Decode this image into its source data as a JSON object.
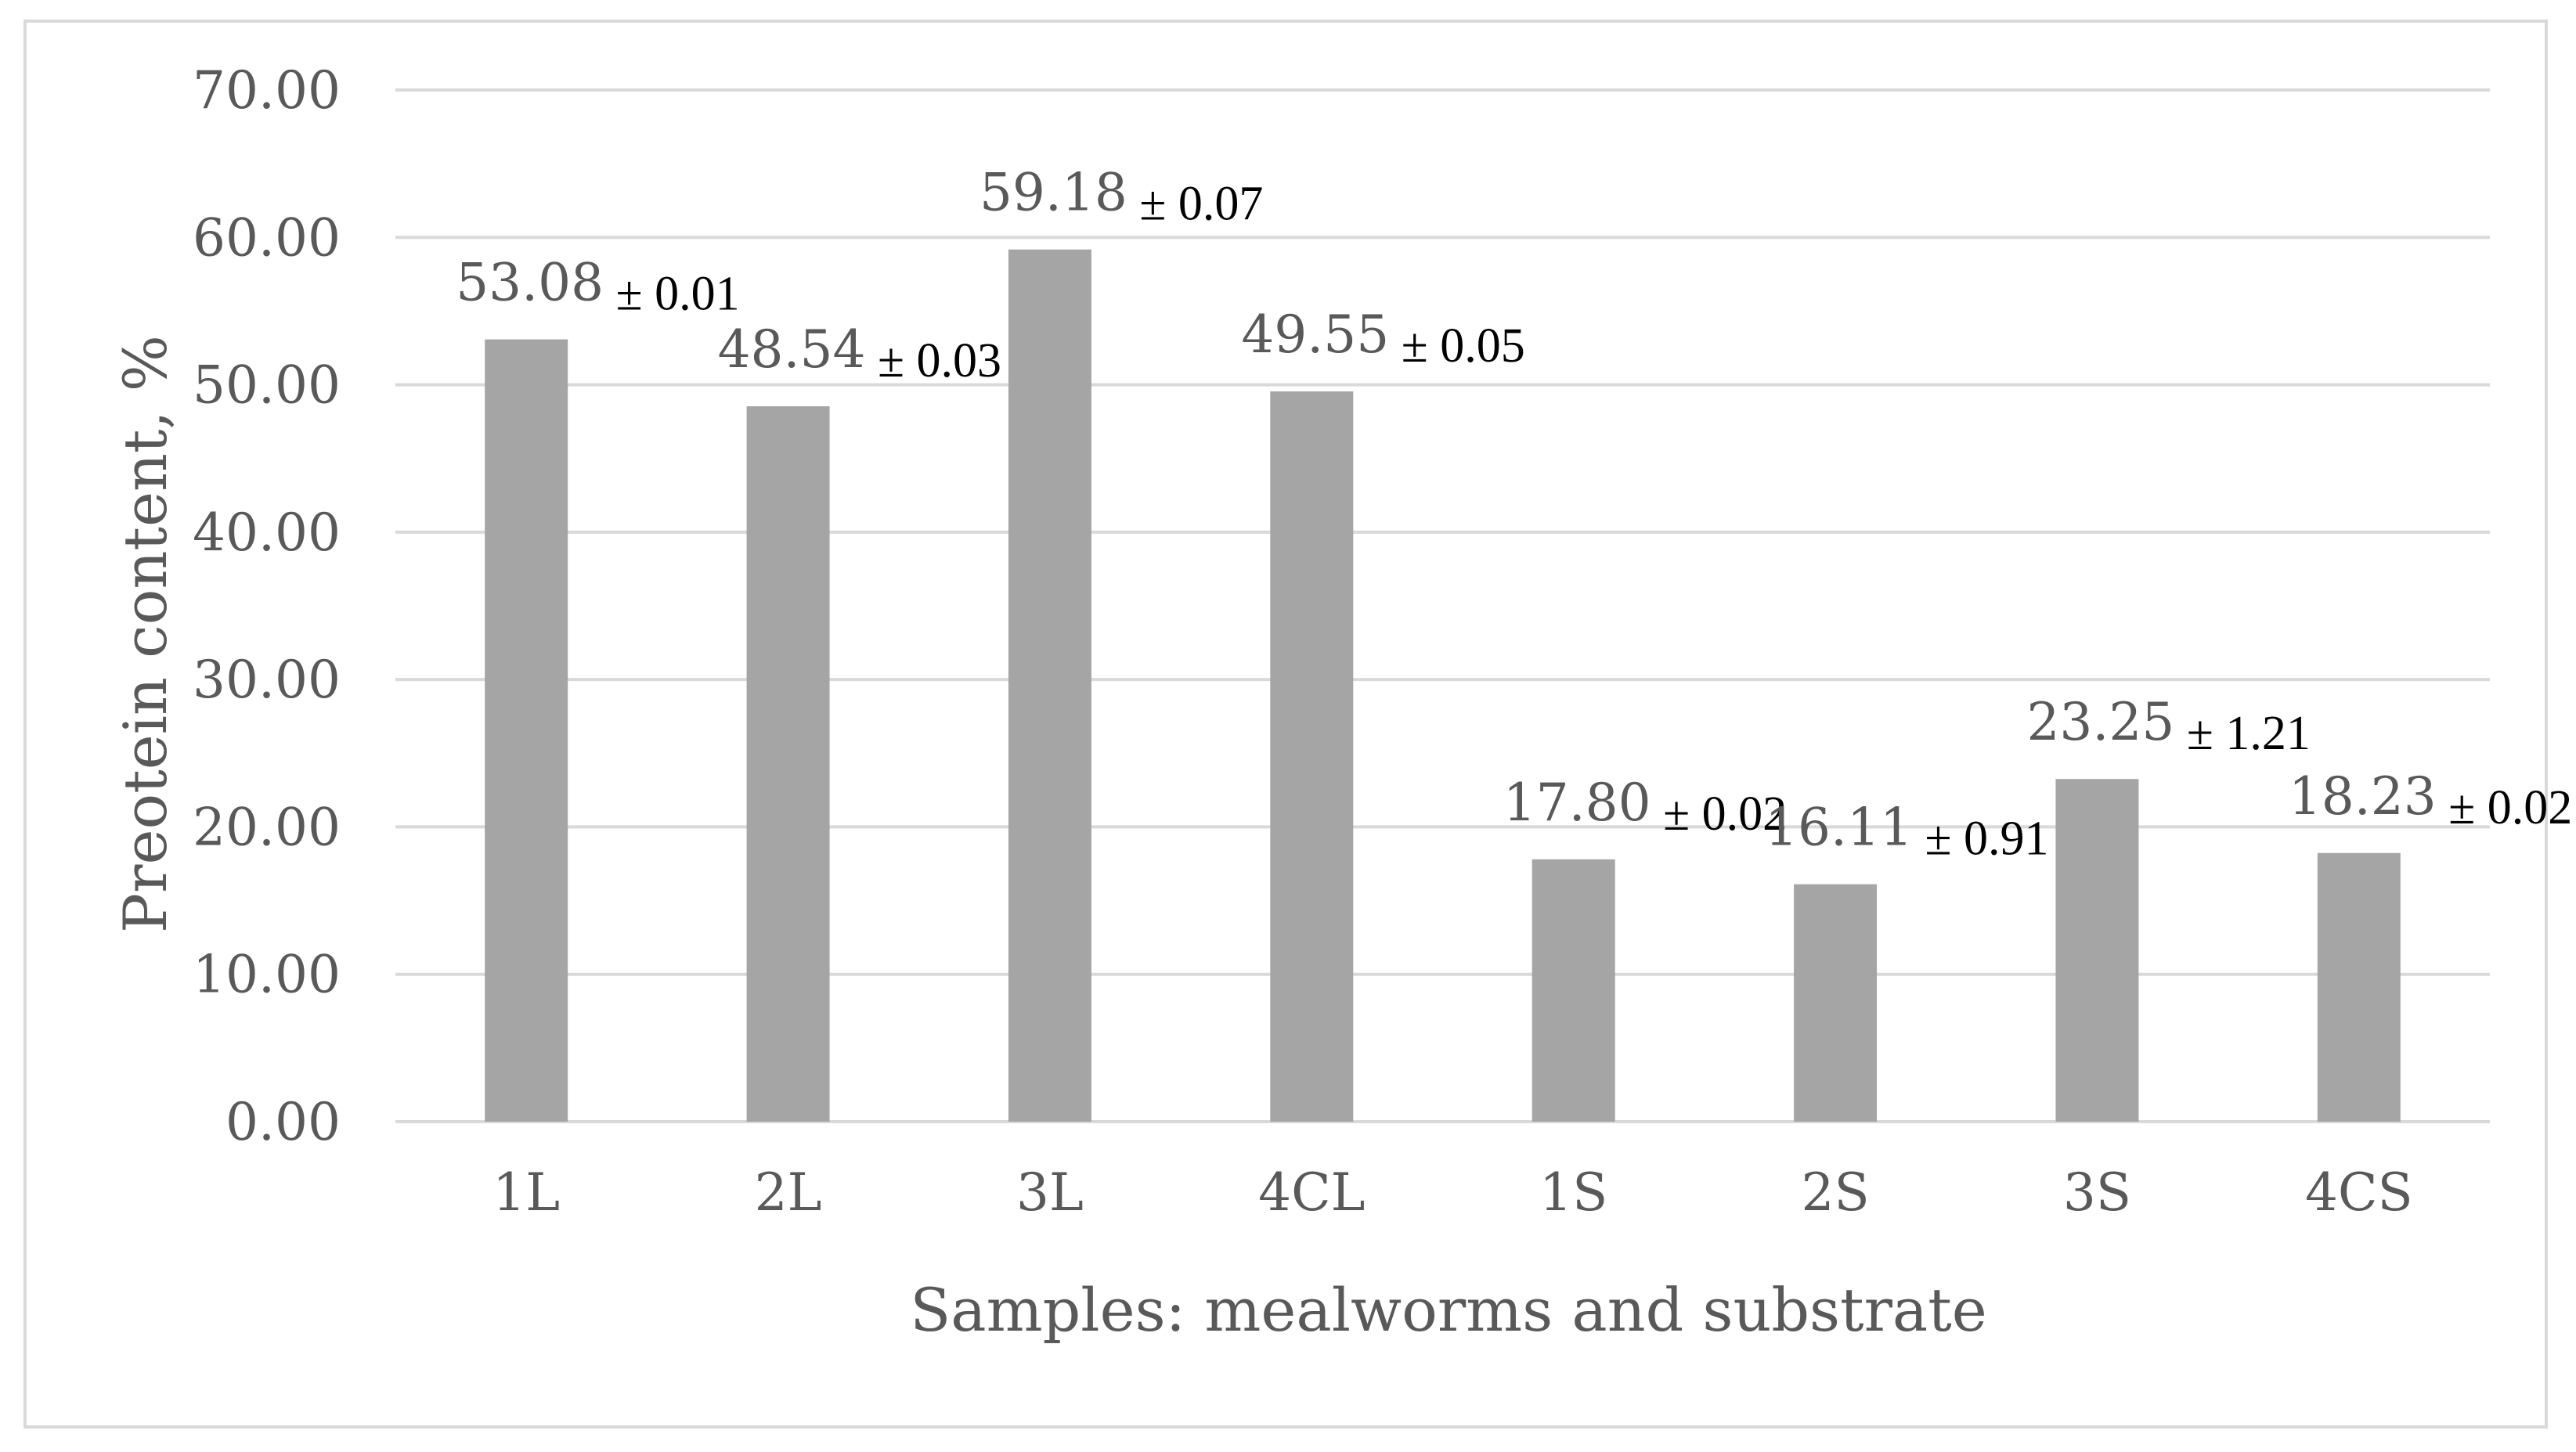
{
  "chart_data": {
    "type": "bar",
    "title": "",
    "xlabel": "Samples: mealworms and substrate",
    "ylabel": "Preotein content, %",
    "ylim": [
      0,
      70
    ],
    "yticks": [
      "0.00",
      "10.00",
      "20.00",
      "30.00",
      "40.00",
      "50.00",
      "60.00",
      "70.00"
    ],
    "grid": true,
    "categories": [
      "1L",
      "2L",
      "3L",
      "4CL",
      "1S",
      "2S",
      "3S",
      "4CS"
    ],
    "values": [
      53.08,
      48.54,
      59.18,
      49.55,
      17.8,
      16.11,
      23.25,
      18.23
    ],
    "value_labels": [
      "53.08",
      "48.54",
      "59.18",
      "49.55",
      "17.80",
      "16.11",
      "23.25",
      "18.23"
    ],
    "errors": [
      0.01,
      0.03,
      0.07,
      0.05,
      0.02,
      0.91,
      1.21,
      0.02
    ],
    "error_labels": [
      "± 0.01",
      "± 0.03",
      "± 0.07",
      "± 0.05",
      "± 0.02",
      "± 0.91",
      "± 1.21",
      "± 0.02"
    ],
    "colors": {
      "bar": "#a5a5a5",
      "grid": "#d9d9d9",
      "text": "#595959",
      "error_text": "#000000"
    }
  }
}
